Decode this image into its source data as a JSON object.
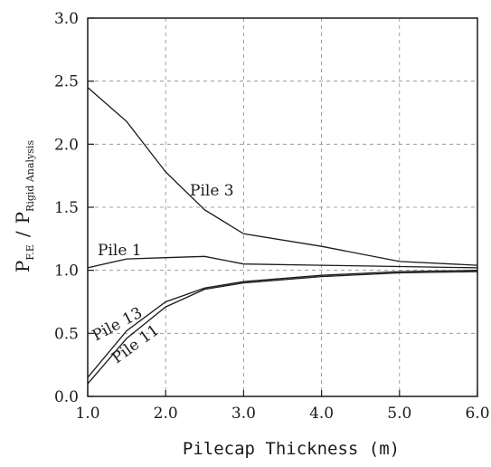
{
  "chart_data": {
    "type": "line",
    "title": "",
    "xlabel": "Pilecap Thickness (m)",
    "ylabel_parts": {
      "p1": "P",
      "sub1": "F.E",
      "slash": "/",
      "p2": "P",
      "sub2": "Rigid Analysis"
    },
    "xlim": [
      1.0,
      6.0
    ],
    "ylim": [
      0.0,
      3.0
    ],
    "xticks": [
      1.0,
      2.0,
      3.0,
      4.0,
      5.0,
      6.0
    ],
    "xtick_labels": [
      "1.0",
      "2.0",
      "3.0",
      "4.0",
      "5.0",
      "6.0"
    ],
    "yticks": [
      0.0,
      0.5,
      1.0,
      1.5,
      2.0,
      2.5,
      3.0
    ],
    "ytick_labels": [
      "0.0",
      "0.5",
      "1.0",
      "1.5",
      "2.0",
      "2.5",
      "3.0"
    ],
    "grid": true,
    "grid_style": "dashed",
    "series": [
      {
        "name": "Pile 3",
        "x": [
          1.0,
          1.5,
          2.0,
          2.5,
          3.0,
          4.0,
          5.0,
          6.0
        ],
        "values": [
          2.45,
          2.18,
          1.78,
          1.48,
          1.29,
          1.19,
          1.07,
          1.04
        ]
      },
      {
        "name": "Pile 1",
        "x": [
          1.0,
          1.5,
          2.0,
          2.5,
          3.0,
          4.0,
          5.0,
          6.0
        ],
        "values": [
          1.02,
          1.09,
          1.1,
          1.11,
          1.05,
          1.04,
          1.03,
          1.02
        ]
      },
      {
        "name": "Pile 13",
        "x": [
          1.0,
          1.5,
          2.0,
          2.5,
          3.0,
          4.0,
          5.0,
          6.0
        ],
        "values": [
          0.15,
          0.52,
          0.75,
          0.86,
          0.91,
          0.96,
          0.99,
          1.0
        ]
      },
      {
        "name": "Pile 11",
        "x": [
          1.0,
          1.5,
          2.0,
          2.5,
          3.0,
          4.0,
          5.0,
          6.0
        ],
        "values": [
          0.1,
          0.46,
          0.71,
          0.85,
          0.9,
          0.95,
          0.98,
          0.99
        ]
      }
    ]
  }
}
